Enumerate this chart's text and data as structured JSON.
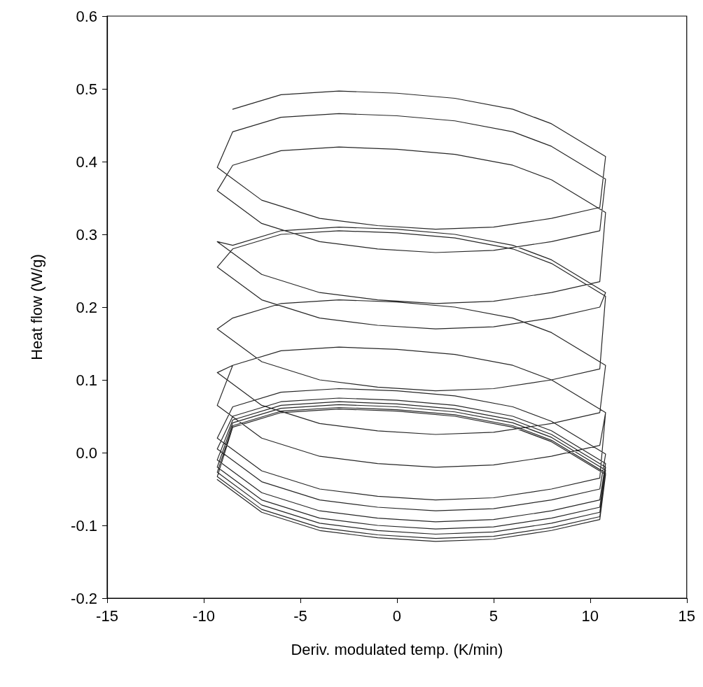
{
  "chart_data": {
    "type": "line",
    "xlabel": "Deriv. modulated temp. (K/min)",
    "ylabel": "Heat flow (W/g)",
    "xlim": [
      -15,
      15
    ],
    "xticks": [
      -15,
      -10,
      -5,
      0,
      5,
      10,
      15
    ],
    "ylim": [
      -0.2,
      0.6
    ],
    "yticks": [
      -0.2,
      -0.1,
      {
        "value": 0,
        "label": "0.0"
      },
      0.1,
      0.2,
      0.3,
      0.4,
      0.5,
      0.6
    ],
    "grid": false,
    "marker": "none",
    "line_style": "solid",
    "series": [
      {
        "color": "#262626",
        "x": [
          -8.5,
          -6,
          -3,
          0,
          3,
          6,
          8,
          10.8,
          10.5,
          8,
          5,
          2,
          -1,
          -4,
          -7,
          -9.3,
          -8.5,
          -6,
          -3,
          0,
          3,
          6,
          8,
          10.8,
          10.5,
          8,
          5,
          2,
          -1,
          -4,
          -7,
          -9.3,
          -8.5,
          -6,
          -3,
          0,
          3,
          6,
          8,
          10.8,
          10.5,
          8,
          5,
          2,
          -1,
          -4,
          -7,
          -9.3,
          -8.5,
          -6,
          -3,
          0,
          3,
          6,
          8,
          10.8,
          10.5,
          8,
          5,
          2,
          -1,
          -4,
          -7,
          -9.3,
          -8.5,
          -6,
          -3,
          0,
          3,
          6,
          8,
          10.8,
          10.5,
          8,
          5,
          2,
          -1,
          -4,
          -7,
          -9.3,
          -8.5,
          -6,
          -3,
          0,
          3,
          6,
          8,
          10.8,
          10.5,
          8,
          5,
          2,
          -1,
          -4,
          -7,
          -9.3,
          -8.5,
          -6,
          -3,
          0,
          3,
          6,
          8,
          10.8,
          10.5,
          8,
          5,
          2,
          -1,
          -4,
          -7,
          -9.3,
          -8.5,
          -6,
          -3,
          0,
          3,
          6,
          8,
          10.8,
          10.5,
          8,
          5,
          2,
          -1,
          -4,
          -7,
          -9.3,
          -8.5,
          -6,
          -3,
          0,
          3,
          6,
          8,
          10.8,
          10.5,
          8,
          5,
          2,
          -1,
          -4,
          -7,
          -9.3,
          -8.5,
          -6,
          -3,
          0,
          3,
          6,
          8,
          10.8,
          10.5,
          8,
          5,
          2,
          -1,
          -4,
          -7,
          -9.3,
          -8.5,
          -6,
          -3,
          0,
          3,
          6,
          8,
          10.8,
          10.5,
          8,
          5,
          2,
          -1,
          -4,
          -7,
          -9.3,
          -8.5,
          -6,
          -3,
          0,
          3,
          6,
          8,
          10.8,
          10.5,
          8,
          5,
          2,
          -1,
          -4,
          -7,
          -9.3,
          -8.5,
          -6,
          -3,
          0,
          3,
          6,
          8,
          10.8,
          10.5,
          8,
          5,
          2,
          -1,
          -4,
          -7,
          -9.3,
          -8.5,
          -6,
          -3,
          0,
          3,
          6,
          8,
          10.8,
          10.5,
          8,
          5,
          2,
          -1,
          -4,
          -7,
          -9.3
        ],
        "values": [
          0.472,
          0.492,
          0.497,
          0.494,
          0.487,
          0.472,
          0.452,
          0.407,
          0.337,
          0.322,
          0.31,
          0.307,
          0.312,
          0.322,
          0.347,
          0.392,
          0.441,
          0.461,
          0.466,
          0.463,
          0.456,
          0.441,
          0.421,
          0.376,
          0.305,
          0.29,
          0.278,
          0.275,
          0.28,
          0.29,
          0.315,
          0.36,
          0.395,
          0.415,
          0.42,
          0.417,
          0.41,
          0.395,
          0.375,
          0.33,
          0.235,
          0.22,
          0.208,
          0.205,
          0.21,
          0.22,
          0.245,
          0.29,
          0.285,
          0.305,
          0.31,
          0.307,
          0.3,
          0.285,
          0.265,
          0.22,
          0.2,
          0.185,
          0.173,
          0.17,
          0.175,
          0.185,
          0.21,
          0.255,
          0.28,
          0.3,
          0.305,
          0.302,
          0.295,
          0.28,
          0.26,
          0.215,
          0.115,
          0.1,
          0.088,
          0.085,
          0.09,
          0.1,
          0.125,
          0.17,
          0.185,
          0.205,
          0.21,
          0.207,
          0.2,
          0.185,
          0.165,
          0.12,
          0.055,
          0.04,
          0.028,
          0.025,
          0.03,
          0.04,
          0.065,
          0.11,
          0.12,
          0.14,
          0.145,
          0.142,
          0.135,
          0.12,
          0.1,
          0.055,
          0.01,
          -0.005,
          -0.017,
          -0.02,
          -0.015,
          -0.005,
          0.02,
          0.065,
          0.12,
          0.14,
          0.145,
          0.142,
          0.135,
          0.12,
          0.1,
          0.055,
          -0.035,
          -0.05,
          -0.062,
          -0.065,
          -0.06,
          -0.05,
          -0.025,
          0.02,
          0.063,
          0.083,
          0.088,
          0.085,
          0.078,
          0.063,
          0.043,
          -0.002,
          -0.05,
          -0.065,
          -0.077,
          -0.08,
          -0.075,
          -0.065,
          -0.04,
          0.005,
          0.05,
          0.07,
          0.075,
          0.072,
          0.065,
          0.05,
          0.03,
          -0.015,
          -0.065,
          -0.08,
          -0.092,
          -0.095,
          -0.09,
          -0.08,
          -0.055,
          -0.01,
          0.045,
          0.065,
          0.07,
          0.067,
          0.06,
          0.045,
          0.025,
          -0.02,
          -0.075,
          -0.09,
          -0.102,
          -0.105,
          -0.1,
          -0.09,
          -0.065,
          -0.02,
          0.041,
          0.061,
          0.066,
          0.063,
          0.056,
          0.041,
          0.021,
          -0.024,
          -0.082,
          -0.097,
          -0.109,
          -0.112,
          -0.107,
          -0.097,
          -0.072,
          -0.027,
          0.037,
          0.057,
          0.062,
          0.059,
          0.052,
          0.037,
          0.017,
          -0.028,
          -0.088,
          -0.103,
          -0.115,
          -0.118,
          -0.113,
          -0.103,
          -0.078,
          -0.033,
          0.035,
          0.055,
          0.06,
          0.057,
          0.05,
          0.035,
          0.015,
          -0.03,
          -0.092,
          -0.107,
          -0.119,
          -0.122,
          -0.117,
          -0.107,
          -0.082,
          -0.037
        ]
      }
    ]
  }
}
